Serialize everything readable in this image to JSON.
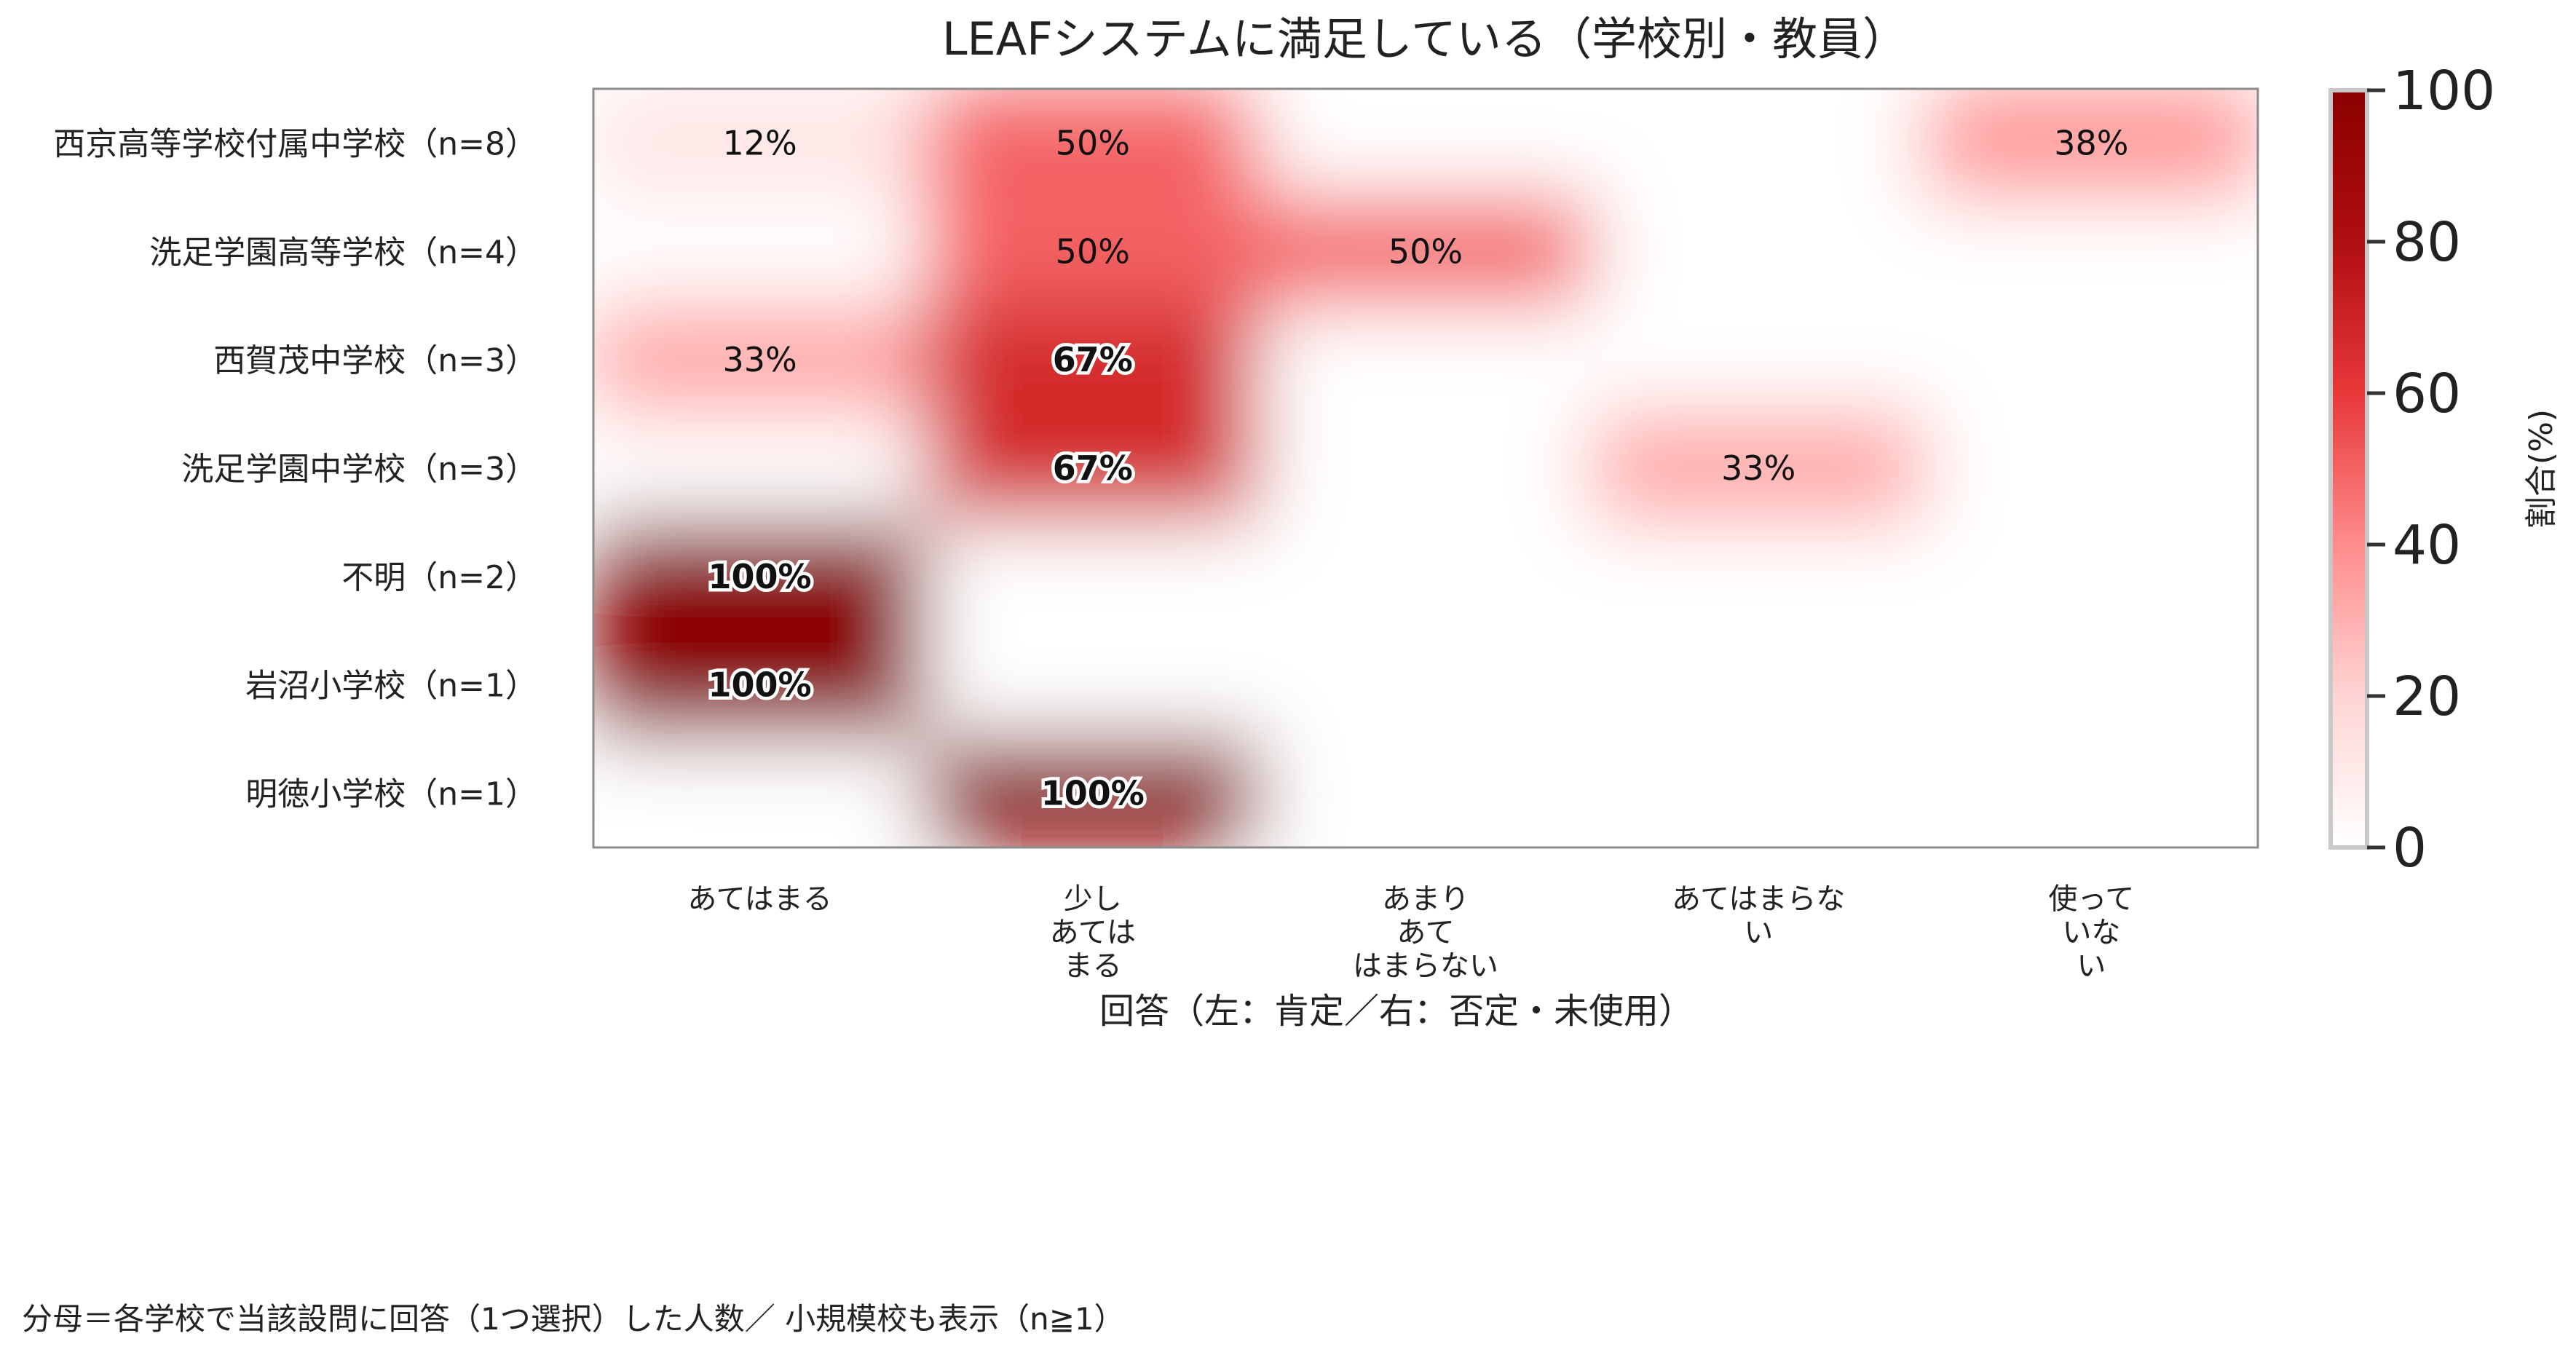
{
  "chart_data": {
    "type": "heatmap",
    "title": "LEAFシステムに満足している（学校別・教員）",
    "xlabel": "回答（左：肯定／右：否定・未使用）",
    "categories": [
      "あてはまる",
      "少し\nあては\nまる",
      "あまり\nあて\nはまらない",
      "あてはまらな\nい",
      "使って\nいな\nい"
    ],
    "rows": [
      "西京高等学校付属中学校（n=8）",
      "洗足学園高等学校（n=4）",
      "西賀茂中学校（n=3）",
      "洗足学園中学校（n=3）",
      "不明（n=2）",
      "岩沼小学校（n=1）",
      "明徳小学校（n=1）"
    ],
    "values": [
      [
        12,
        50,
        0,
        0,
        38
      ],
      [
        0,
        50,
        50,
        0,
        0
      ],
      [
        33,
        67,
        0,
        0,
        0
      ],
      [
        0,
        67,
        0,
        33,
        0
      ],
      [
        100,
        0,
        0,
        0,
        0
      ],
      [
        100,
        0,
        0,
        0,
        0
      ],
      [
        0,
        100,
        0,
        0,
        0
      ]
    ],
    "cell_labels": [
      [
        "12%",
        "50%",
        "",
        "",
        "38%"
      ],
      [
        "",
        "50%",
        "50%",
        "",
        ""
      ],
      [
        "33%",
        "67%",
        "",
        "",
        ""
      ],
      [
        "",
        "67%",
        "",
        "33%",
        ""
      ],
      [
        "100%",
        "",
        "",
        "",
        ""
      ],
      [
        "100%",
        "",
        "",
        "",
        ""
      ],
      [
        "",
        "100%",
        "",
        "",
        ""
      ]
    ],
    "colorbar": {
      "label": "割合(%)",
      "range": [
        0,
        100
      ],
      "ticks": [
        "0",
        "20",
        "40",
        "60",
        "80",
        "100"
      ],
      "colors": [
        "#ffffff",
        "#ffd4d4",
        "#ff8c8c",
        "#e8383a",
        "#b00e12",
        "#8b0000"
      ]
    },
    "interpolation": "smooth",
    "grid": false
  },
  "footnote": "分母＝各学校で当該設問に回答（1つ選択）した人数／ 小規模校も表示（n≧1）"
}
